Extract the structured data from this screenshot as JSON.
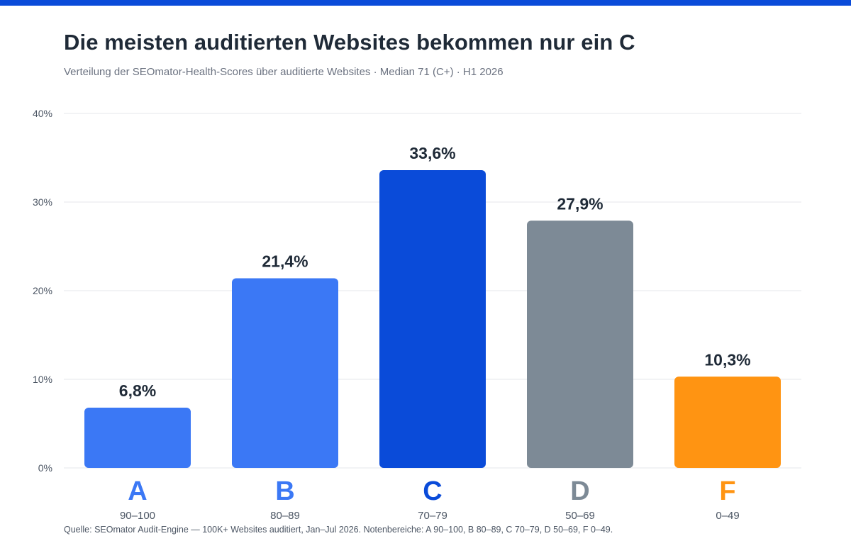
{
  "title": "Die meisten auditierten Websites bekommen nur ein C",
  "subtitle": "Verteilung der SEOmator-Health-Scores über auditierte Websites · Median 71 (C+) · H1 2026",
  "source": "Quelle: SEOmator Audit-Engine — 100K+ Websites auditiert, Jan–Jul 2026. Notenbereiche: A 90–100, B 80–89, C 70–79, D 50–69, F 0–49.",
  "colors": {
    "accent_bar": "#0a4bd9",
    "grid": "#e5e7eb",
    "tick_text": "#4b5563",
    "value_text": "#1f2a37",
    "range_text": "#4b5563"
  },
  "chart_data": {
    "type": "bar",
    "categories": [
      "A",
      "B",
      "C",
      "D",
      "F"
    ],
    "ranges": [
      "90–100",
      "80–89",
      "70–79",
      "50–69",
      "0–49"
    ],
    "values": [
      6.8,
      21.4,
      33.6,
      27.9,
      10.3
    ],
    "value_labels": [
      "6,8%",
      "21,4%",
      "33,6%",
      "27,9%",
      "10,3%"
    ],
    "bar_colors": [
      "#3b78f5",
      "#3b78f5",
      "#0a4bd9",
      "#7d8a96",
      "#ff9412"
    ],
    "ylim": [
      0,
      40
    ],
    "yticks": [
      0,
      10,
      20,
      30,
      40
    ],
    "ytick_labels": [
      "0%",
      "10%",
      "20%",
      "30%",
      "40%"
    ],
    "grid": true,
    "xlabel": "",
    "ylabel": ""
  }
}
